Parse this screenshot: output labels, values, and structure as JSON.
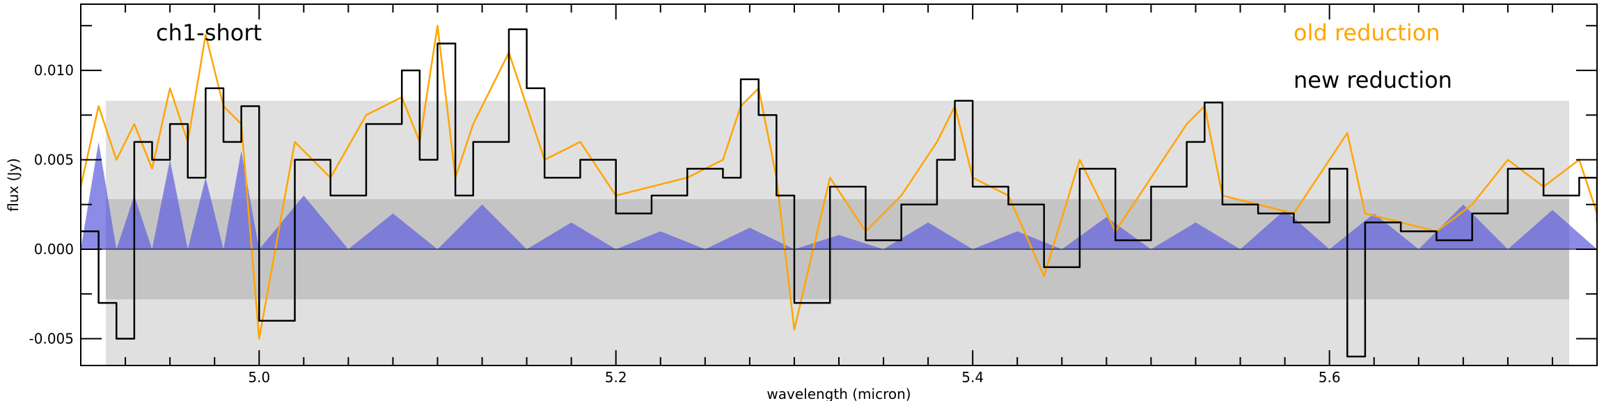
{
  "chart_data": {
    "type": "line",
    "title": "",
    "xlabel": "wavelength (micron)",
    "ylabel": "flux (Jy)",
    "xlim": [
      4.9,
      5.75
    ],
    "ylim": [
      -0.0065,
      0.0137
    ],
    "xticks": [
      5.0,
      5.2,
      5.4,
      5.6
    ],
    "xtick_labels": [
      "5.0",
      "5.2",
      "5.4",
      "5.6"
    ],
    "yticks": [
      -0.005,
      0.0,
      0.005,
      0.01
    ],
    "ytick_labels": [
      "-0.005",
      "0.000",
      "0.005",
      "0.010"
    ],
    "grid": false,
    "annotations": {
      "channel": "ch1-short",
      "legend_old": "old reduction",
      "legend_new": "new reduction"
    },
    "noise_bands": [
      {
        "lower": -0.0065,
        "upper": 0.0083,
        "color": "#e0e0e0"
      },
      {
        "lower": -0.0028,
        "upper": 0.0028,
        "color": "#c4c4c4"
      }
    ],
    "series": [
      {
        "name": "old reduction",
        "color": "#ffa500",
        "x": [
          4.9,
          4.91,
          4.92,
          4.93,
          4.94,
          4.95,
          4.96,
          4.97,
          4.98,
          4.99,
          5.0,
          5.02,
          5.04,
          5.06,
          5.08,
          5.09,
          5.1,
          5.11,
          5.12,
          5.14,
          5.15,
          5.16,
          5.18,
          5.2,
          5.22,
          5.24,
          5.26,
          5.27,
          5.28,
          5.29,
          5.3,
          5.32,
          5.34,
          5.36,
          5.38,
          5.39,
          5.4,
          5.42,
          5.44,
          5.46,
          5.48,
          5.5,
          5.52,
          5.53,
          5.54,
          5.56,
          5.58,
          5.6,
          5.61,
          5.62,
          5.64,
          5.66,
          5.68,
          5.7,
          5.72,
          5.74,
          5.75
        ],
        "y": [
          0.0035,
          0.008,
          0.005,
          0.007,
          0.0045,
          0.009,
          0.006,
          0.012,
          0.008,
          0.007,
          -0.005,
          0.006,
          0.004,
          0.0075,
          0.0085,
          0.006,
          0.0125,
          0.004,
          0.007,
          0.011,
          0.008,
          0.005,
          0.006,
          0.003,
          0.0035,
          0.004,
          0.005,
          0.008,
          0.009,
          0.004,
          -0.0045,
          0.004,
          0.001,
          0.003,
          0.006,
          0.008,
          0.004,
          0.003,
          -0.0015,
          0.005,
          0.001,
          0.004,
          0.007,
          0.008,
          0.003,
          0.0025,
          0.002,
          0.005,
          0.0065,
          0.002,
          0.0015,
          0.001,
          0.0025,
          0.005,
          0.0035,
          0.005,
          0.002
        ]
      },
      {
        "name": "new reduction",
        "color": "#000000",
        "x": [
          4.9,
          4.91,
          4.92,
          4.93,
          4.94,
          4.95,
          4.96,
          4.97,
          4.98,
          4.99,
          5.0,
          5.02,
          5.04,
          5.06,
          5.08,
          5.09,
          5.1,
          5.11,
          5.12,
          5.14,
          5.15,
          5.16,
          5.18,
          5.2,
          5.22,
          5.24,
          5.26,
          5.27,
          5.28,
          5.29,
          5.3,
          5.32,
          5.34,
          5.36,
          5.38,
          5.39,
          5.4,
          5.42,
          5.44,
          5.46,
          5.48,
          5.5,
          5.52,
          5.53,
          5.54,
          5.56,
          5.58,
          5.6,
          5.61,
          5.62,
          5.64,
          5.66,
          5.68,
          5.7,
          5.72,
          5.74,
          5.75
        ],
        "y": [
          0.001,
          -0.003,
          -0.005,
          0.006,
          0.005,
          0.007,
          0.004,
          0.009,
          0.006,
          0.008,
          -0.004,
          0.005,
          0.003,
          0.007,
          0.01,
          0.005,
          0.0115,
          0.003,
          0.006,
          0.0123,
          0.009,
          0.004,
          0.005,
          0.002,
          0.003,
          0.0045,
          0.004,
          0.0095,
          0.0075,
          0.003,
          -0.003,
          0.0035,
          0.0005,
          0.0025,
          0.005,
          0.0083,
          0.0035,
          0.0025,
          -0.001,
          0.0045,
          0.0005,
          0.0035,
          0.006,
          0.0082,
          0.0025,
          0.002,
          0.0015,
          0.0045,
          -0.006,
          0.0015,
          0.001,
          0.0005,
          0.002,
          0.0045,
          0.003,
          0.004,
          0.0015
        ]
      },
      {
        "name": "",
        "color": "#6666dd",
        "x": [
          4.9,
          4.92,
          4.94,
          4.96,
          4.98,
          5.0,
          5.05,
          5.1,
          5.15,
          5.2,
          5.25,
          5.3,
          5.35,
          5.4,
          5.45,
          5.5,
          5.55,
          5.6,
          5.65,
          5.7,
          5.75
        ],
        "y": [
          0.006,
          0.003,
          0.005,
          0.004,
          0.0055,
          0.003,
          0.002,
          0.0025,
          0.0015,
          0.001,
          0.0012,
          0.0008,
          0.0015,
          0.001,
          0.0018,
          0.0015,
          0.0022,
          0.002,
          0.0025,
          0.0022,
          0.001
        ]
      }
    ]
  }
}
